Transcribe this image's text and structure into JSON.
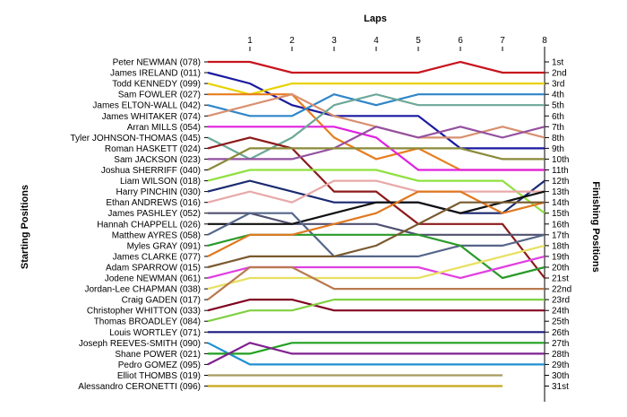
{
  "chart_data": {
    "type": "line",
    "title": "Laps",
    "xlabel": "Laps",
    "ylabel_left": "Starting Positions",
    "ylabel_right": "Finishing Positions",
    "x": [
      0,
      1,
      2,
      3,
      4,
      5,
      6,
      7,
      8
    ],
    "x_tick_labels": [
      "1",
      "2",
      "3",
      "4",
      "5",
      "6",
      "7",
      "8"
    ],
    "finishing_labels": [
      "1st",
      "2nd",
      "3rd",
      "4th",
      "5th",
      "6th",
      "7th",
      "8th",
      "9th",
      "10th",
      "11th",
      "12th",
      "13th",
      "14th",
      "15th",
      "16th",
      "17th",
      "18th",
      "19th",
      "20th",
      "21st",
      "22nd",
      "23rd",
      "24th",
      "25th",
      "26th",
      "27th",
      "28th",
      "29th",
      "30th",
      "31st"
    ],
    "grid": false,
    "legend": "none",
    "series": [
      {
        "name": "Peter NEWMAN (078)",
        "color": "#c8141e",
        "positions": [
          1,
          1,
          2,
          2,
          2,
          2,
          1,
          2,
          2
        ]
      },
      {
        "name": "James IRELAND (011)",
        "color": "#1a1aa0",
        "positions": [
          2,
          3,
          5,
          6,
          6,
          6,
          9,
          9,
          9
        ]
      },
      {
        "name": "Todd KENNEDY (099)",
        "color": "#e8d200",
        "positions": [
          3,
          4,
          3,
          3,
          3,
          3,
          3,
          3,
          3
        ]
      },
      {
        "name": "Sam FOWLER (027)",
        "color": "#e87d1e",
        "positions": [
          4,
          4,
          4,
          8,
          10,
          9,
          11,
          11,
          11
        ]
      },
      {
        "name": "James ELTON-WALL (042)",
        "color": "#2f86c8",
        "positions": [
          5,
          6,
          6,
          4,
          5,
          4,
          4,
          4,
          4
        ]
      },
      {
        "name": "James WHITAKER (074)",
        "color": "#d89070",
        "positions": [
          6,
          5,
          4,
          6,
          7,
          8,
          8,
          7,
          8
        ]
      },
      {
        "name": "Arran MILLS (054)",
        "color": "#e020e0",
        "positions": [
          7,
          7,
          7,
          7,
          8,
          11,
          11,
          11,
          11
        ]
      },
      {
        "name": "Tyler JOHNSON-THOMAS (045)",
        "color": "#6ca898",
        "positions": [
          8,
          10,
          8,
          5,
          4,
          5,
          5,
          5,
          5
        ]
      },
      {
        "name": "Roman HASKETT (024)",
        "color": "#8c1a1a",
        "positions": [
          9,
          8,
          9,
          13,
          13,
          16,
          16,
          16,
          21
        ]
      },
      {
        "name": "Sam JACKSON (023)",
        "color": "#9450a0",
        "positions": [
          10,
          10,
          10,
          9,
          7,
          8,
          7,
          8,
          7
        ]
      },
      {
        "name": "Joshua SHERRIFF (040)",
        "color": "#8a8a3a",
        "positions": [
          11,
          9,
          9,
          9,
          9,
          9,
          9,
          10,
          10
        ]
      },
      {
        "name": "Liam WILSON (018)",
        "color": "#90e040",
        "positions": [
          12,
          11,
          11,
          11,
          11,
          12,
          12,
          12,
          15
        ]
      },
      {
        "name": "Harry PINCHIN (030)",
        "color": "#1a2a70",
        "positions": [
          13,
          12,
          13,
          14,
          14,
          14,
          15,
          15,
          12
        ]
      },
      {
        "name": "Ethan ANDREWS (016)",
        "color": "#e8a8a8",
        "positions": [
          14,
          13,
          14,
          12,
          12,
          13,
          13,
          13,
          13
        ]
      },
      {
        "name": "James PASHLEY (052)",
        "color": "#505070",
        "positions": [
          15,
          15,
          16,
          16,
          16,
          17,
          17,
          17,
          17
        ]
      },
      {
        "name": "Hannah CHAPPELL (026)",
        "color": "#101010",
        "positions": [
          16,
          16,
          16,
          15,
          14,
          14,
          15,
          14,
          13
        ]
      },
      {
        "name": "Matthew AYRES (058)",
        "color": "#556688",
        "positions": [
          17,
          15,
          15,
          19,
          19,
          19,
          18,
          18,
          17
        ]
      },
      {
        "name": "Myles GRAY (091)",
        "color": "#2a9a2a",
        "positions": [
          18,
          17,
          17,
          17,
          17,
          17,
          18,
          21,
          20
        ]
      },
      {
        "name": "James CLARKE (077)",
        "color": "#e07820",
        "positions": [
          19,
          17,
          17,
          16,
          15,
          13,
          13,
          15,
          14
        ]
      },
      {
        "name": "Adam SPARROW (015)",
        "color": "#7a5a30",
        "positions": [
          20,
          19,
          19,
          19,
          18,
          16,
          14,
          14,
          14
        ]
      },
      {
        "name": "Jodene NEWMAN (061)",
        "color": "#e040e0",
        "positions": [
          21,
          20,
          20,
          20,
          20,
          20,
          21,
          20,
          19
        ]
      },
      {
        "name": "Jordan-Lee CHAPMAN (038)",
        "color": "#e8e060",
        "positions": [
          22,
          21,
          21,
          21,
          21,
          21,
          20,
          19,
          18
        ]
      },
      {
        "name": "Craig GADEN (017)",
        "color": "#b87a50",
        "positions": [
          23,
          20,
          20,
          22,
          22,
          22,
          22,
          22,
          22
        ]
      },
      {
        "name": "Christopher WHITTON (033)",
        "color": "#800020",
        "positions": [
          24,
          23,
          23,
          24,
          24,
          24,
          24,
          24,
          24
        ]
      },
      {
        "name": "Thomas BROADLEY (084)",
        "color": "#80d040",
        "positions": [
          25,
          24,
          24,
          23,
          23,
          23,
          23,
          23,
          23
        ]
      },
      {
        "name": "Louis WORTLEY (071)",
        "color": "#1a1a80",
        "positions": [
          26,
          26,
          26,
          26,
          26,
          26,
          26,
          26,
          26
        ]
      },
      {
        "name": "Joseph REEVES-SMITH (090)",
        "color": "#2090d0",
        "positions": [
          27,
          29,
          29,
          29,
          29,
          29,
          29,
          29,
          29
        ]
      },
      {
        "name": "Shane POWER (021)",
        "color": "#20a020",
        "positions": [
          28,
          28,
          27,
          27,
          27,
          27,
          27,
          27,
          27
        ]
      },
      {
        "name": "Pedro GOMEZ (095)",
        "color": "#802090",
        "positions": [
          29,
          27,
          28,
          28,
          28,
          28,
          28,
          28,
          28
        ]
      },
      {
        "name": "Elliot THOMBS (019)",
        "color": "#a89a60",
        "positions": [
          30,
          30,
          30,
          30,
          30,
          30,
          30,
          30
        ]
      },
      {
        "name": "Alessandro CERONETTI (096)",
        "color": "#c8a818",
        "positions": [
          31,
          31,
          31,
          31,
          31,
          31,
          31,
          31
        ]
      }
    ]
  }
}
